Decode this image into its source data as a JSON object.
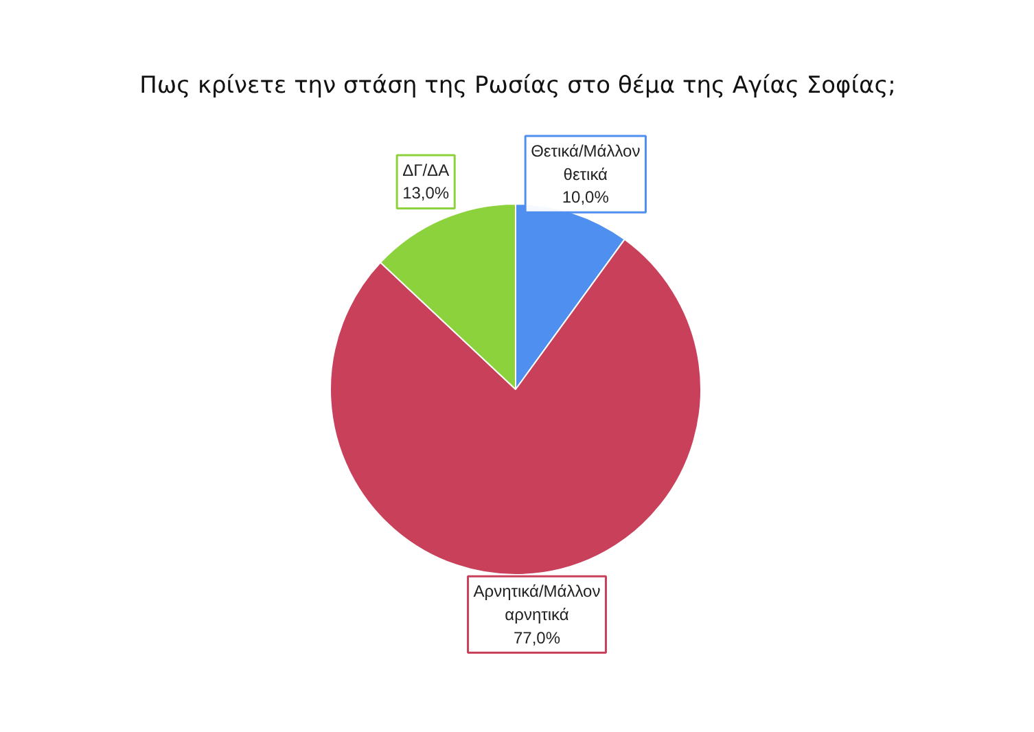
{
  "chart_data": {
    "type": "pie",
    "title": "Πως κρίνετε την στάση της Ρωσίας στο θέμα της Αγίας Σοφίας;",
    "categories": [
      "Θετικά/Μάλλον θετικά",
      "Αρνητικά/Μάλλον αρνητικά",
      "ΔΓ/ΔΑ"
    ],
    "values": [
      10,
      77,
      13
    ],
    "colors": [
      "#4f8ff0",
      "#c9405a",
      "#8cd23c"
    ],
    "value_labels": [
      "10,0%",
      "77,0%",
      "13,0%"
    ]
  }
}
